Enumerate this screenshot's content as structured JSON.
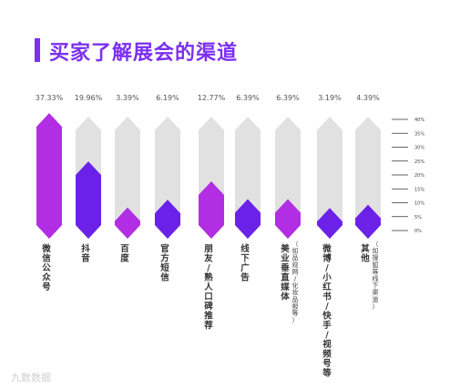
{
  "title": "买家了解展会的渠道",
  "watermark": "九数数据",
  "colors": {
    "bar_bg": "#e1e1e1",
    "magenta": "#b12ee4",
    "violet": "#6b21e8",
    "title": "#7b2ff2",
    "text": "#555555"
  },
  "chart_data": {
    "type": "bar",
    "categories": [
      "微信公众号",
      "抖音",
      "百度",
      "官方短信",
      "朋友/熟人口碑推荐",
      "线下广告",
      "美业垂直媒体（如品观网/化妆品报等）",
      "微博/小红书/快手/视频号等",
      "其他（如搜狐等线下渠道）"
    ],
    "values": [
      37.33,
      19.96,
      3.39,
      6.19,
      12.77,
      6.39,
      6.39,
      3.19,
      4.39
    ],
    "value_labels": [
      "37.33%",
      "19.96%",
      "3.39%",
      "6.19%",
      "12.77%",
      "6.39%",
      "6.39%",
      "3.19%",
      "4.39%"
    ],
    "category_labels": [
      [
        "微",
        "信",
        "公",
        "众",
        "号"
      ],
      [
        "抖",
        "音"
      ],
      [
        "百",
        "度"
      ],
      [
        "官",
        "方",
        "短",
        "信"
      ],
      [
        "朋",
        "友",
        "/",
        "熟",
        "人",
        "口",
        "碑",
        "推",
        "荐"
      ],
      [
        "线",
        "下",
        "广",
        "告"
      ],
      [
        "美",
        "业",
        "垂",
        "直",
        "媒",
        "体"
      ],
      [
        "微",
        "博",
        "/",
        "小",
        "红",
        "书",
        "/",
        "快",
        "手",
        "/",
        "视",
        "频",
        "号",
        "等"
      ],
      [
        "其",
        "他"
      ]
    ],
    "notes": [
      null,
      null,
      null,
      null,
      null,
      null,
      [
        "（",
        "如",
        "品",
        "观",
        "网",
        "/",
        "化",
        "妆",
        "品",
        "报",
        "等",
        "）"
      ],
      null,
      [
        "（",
        "如",
        "搜",
        "狐",
        "等",
        "线",
        "下",
        "渠",
        "道",
        "）"
      ]
    ],
    "bar_colors": [
      "magenta",
      "violet",
      "magenta",
      "violet",
      "magenta",
      "violet",
      "magenta",
      "violet",
      "violet"
    ],
    "ylim": [
      0,
      40
    ],
    "yticks": [
      "40%",
      "35%",
      "30%",
      "25%",
      "20%",
      "15%",
      "10%",
      "5%",
      "0%"
    ],
    "ytick_values": [
      40,
      35,
      30,
      25,
      20,
      15,
      10,
      5,
      0
    ]
  }
}
